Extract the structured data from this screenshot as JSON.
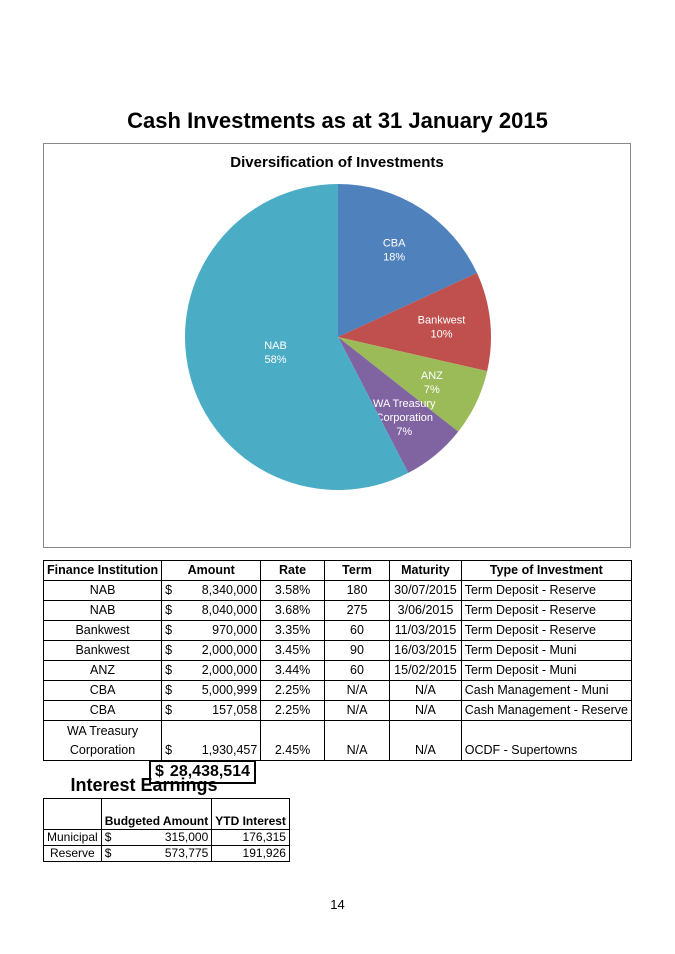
{
  "title": "Cash Investments as at 31 January 2015",
  "chart_data": {
    "type": "pie",
    "title": "Diversification of Investments",
    "slices": [
      {
        "label": "CBA",
        "percent_label": "18%",
        "value": 5158057,
        "color": "#4F81BD"
      },
      {
        "label": "Bankwest",
        "percent_label": "10%",
        "value": 2970000,
        "color": "#C0504D"
      },
      {
        "label": "ANZ",
        "percent_label": "7%",
        "value": 2000000,
        "color": "#9BBB59"
      },
      {
        "label": "WA Treasury Corporation",
        "label_lines": [
          "WA Treasury",
          "Corporation"
        ],
        "percent_label": "7%",
        "value": 1930457,
        "color": "#8064A2"
      },
      {
        "label": "NAB",
        "percent_label": "58%",
        "value": 16380000,
        "color": "#4BACC6"
      }
    ]
  },
  "investments": {
    "headers": [
      "Finance Institution",
      "Amount",
      "Rate",
      "Term",
      "Maturity",
      "Type of Investment"
    ],
    "rows": [
      {
        "institution": "NAB",
        "currency": "$",
        "amount": "8,340,000",
        "rate": "3.58%",
        "term": "180",
        "maturity": "30/07/2015",
        "type": "Term Deposit - Reserve"
      },
      {
        "institution": "NAB",
        "currency": "$",
        "amount": "8,040,000",
        "rate": "3.68%",
        "term": "275",
        "maturity": "3/06/2015",
        "type": "Term Deposit - Reserve"
      },
      {
        "institution": "Bankwest",
        "currency": "$",
        "amount": "970,000",
        "rate": "3.35%",
        "term": "60",
        "maturity": "11/03/2015",
        "type": "Term Deposit - Reserve"
      },
      {
        "institution": "Bankwest",
        "currency": "$",
        "amount": "2,000,000",
        "rate": "3.45%",
        "term": "90",
        "maturity": "16/03/2015",
        "type": "Term Deposit - Muni"
      },
      {
        "institution": "ANZ",
        "currency": "$",
        "amount": "2,000,000",
        "rate": "3.44%",
        "term": "60",
        "maturity": "15/02/2015",
        "type": "Term Deposit - Muni"
      },
      {
        "institution": "CBA",
        "currency": "$",
        "amount": "5,000,999",
        "rate": "2.25%",
        "term": "N/A",
        "maturity": "N/A",
        "type": "Cash Management - Muni"
      },
      {
        "institution": "CBA",
        "currency": "$",
        "amount": "157,058",
        "rate": "2.25%",
        "term": "N/A",
        "maturity": "N/A",
        "type": "Cash Management - Reserve"
      }
    ],
    "last_row": {
      "institution_line1": "WA Treasury",
      "institution_line2": "Corporation",
      "currency": "$",
      "amount": "1,930,457",
      "rate": "2.45%",
      "term": "N/A",
      "maturity": "N/A",
      "type": "OCDF - Supertowns"
    },
    "total": {
      "currency": "$",
      "amount": "28,438,514"
    }
  },
  "interest": {
    "title": "Interest Earnings",
    "headers": [
      "",
      "Budgeted Amount",
      "YTD Interest"
    ],
    "rows": [
      {
        "label": "Municipal",
        "currency": "$",
        "budget": "315,000",
        "ytd": "176,315"
      },
      {
        "label": "Reserve",
        "currency": "$",
        "budget": "573,775",
        "ytd": "191,926"
      }
    ]
  },
  "page_number": "14"
}
